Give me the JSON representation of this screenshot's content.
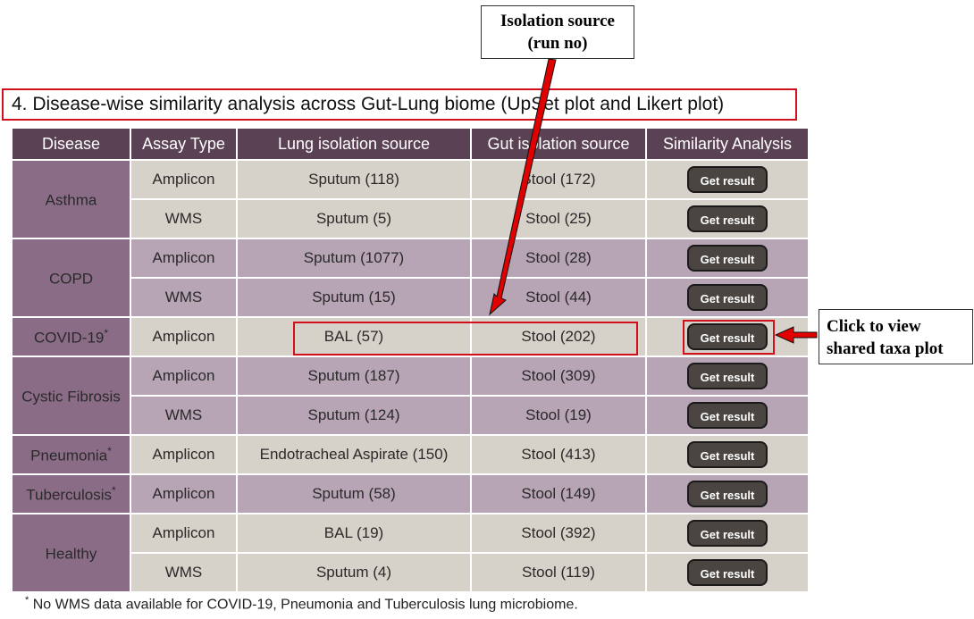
{
  "callouts": {
    "isolation_line1": "Isolation source",
    "isolation_line2": "(run no)",
    "click_line1": "Click to view",
    "click_line2": "shared taxa plot"
  },
  "section_title": "4. Disease-wise similarity analysis across Gut-Lung biome (UpSet plot and Likert plot)",
  "table": {
    "headers": [
      "Disease",
      "Assay Type",
      "Lung isolation source",
      "Gut isolation source",
      "Similarity Analysis"
    ],
    "button_label": "Get result",
    "diseases": [
      {
        "name": "Asthma",
        "mark": ""
      },
      {
        "name": "COPD",
        "mark": ""
      },
      {
        "name": "COVID-19",
        "mark": "*"
      },
      {
        "name": "Cystic Fibrosis",
        "mark": ""
      },
      {
        "name": "Pneumonia",
        "mark": "*"
      },
      {
        "name": "Tuberculosis",
        "mark": "*"
      },
      {
        "name": "Healthy",
        "mark": ""
      }
    ],
    "rows": [
      {
        "assay": "Amplicon",
        "lung": "Sputum (118)",
        "gut": "Stool (172)"
      },
      {
        "assay": "WMS",
        "lung": "Sputum (5)",
        "gut": "Stool (25)"
      },
      {
        "assay": "Amplicon",
        "lung": "Sputum (1077)",
        "gut": "Stool (28)"
      },
      {
        "assay": "WMS",
        "lung": "Sputum (15)",
        "gut": "Stool (44)"
      },
      {
        "assay": "Amplicon",
        "lung": "BAL (57)",
        "gut": "Stool (202)"
      },
      {
        "assay": "Amplicon",
        "lung": "Sputum (187)",
        "gut": "Stool (309)"
      },
      {
        "assay": "WMS",
        "lung": "Sputum (124)",
        "gut": "Stool (19)"
      },
      {
        "assay": "Amplicon",
        "lung": "Endotracheal Aspirate (150)",
        "gut": "Stool (413)"
      },
      {
        "assay": "Amplicon",
        "lung": "Sputum (58)",
        "gut": "Stool (149)"
      },
      {
        "assay": "Amplicon",
        "lung": "BAL (19)",
        "gut": "Stool (392)"
      },
      {
        "assay": "WMS",
        "lung": "Sputum (4)",
        "gut": "Stool (119)"
      }
    ]
  },
  "footnote": {
    "mark": "*",
    "text": "No WMS data available for COVID-19, Pneumonia and Tuberculosis lung microbiome."
  },
  "colors": {
    "header": "#5a4254",
    "disease_cell": "#8a6c86",
    "row_light": "#d6d1c9",
    "row_mauve": "#b7a4b4",
    "button": "#4a4541",
    "highlight": "#d0101a"
  }
}
